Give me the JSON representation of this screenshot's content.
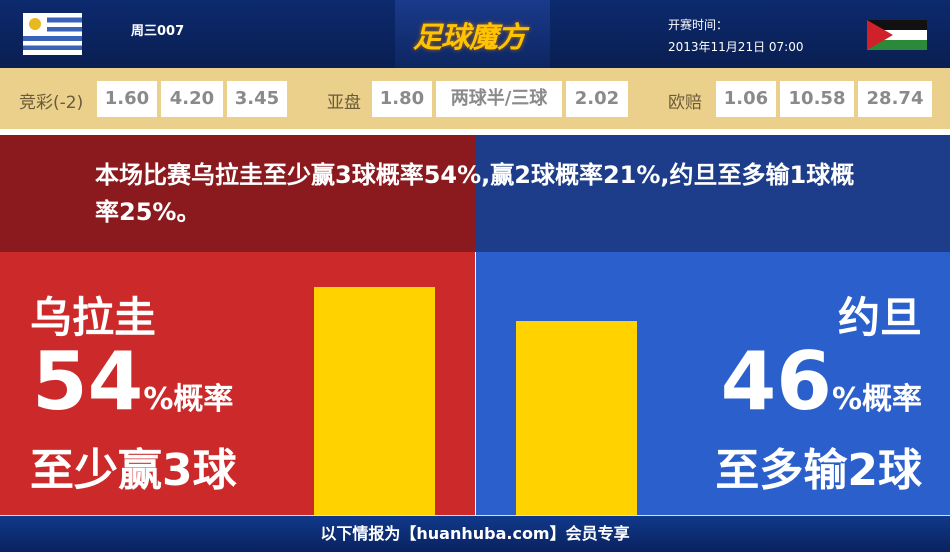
{
  "header": {
    "match_code": "周三007",
    "logo_text": "足球魔方",
    "time_label": "开赛时间：",
    "kickoff": "2013年11月21日 07:00",
    "home_flag": "uruguay-flag-icon",
    "away_flag": "jordan-flag-icon"
  },
  "odds": {
    "jingcai": {
      "label": "竞彩(-2)",
      "values": [
        "1.60",
        "4.20",
        "3.45"
      ]
    },
    "yapan": {
      "label": "亚盘",
      "values": [
        "1.80",
        "两球半/三球",
        "2.02"
      ]
    },
    "oupei": {
      "label": "欧赔",
      "values": [
        "1.06",
        "10.58",
        "28.74"
      ]
    }
  },
  "banner": {
    "text": "本场比赛乌拉圭至少赢3球概率54%,赢2球概率21%,约旦至多输1球概率25%。"
  },
  "home": {
    "team": "乌拉圭",
    "percent": "54",
    "suffix": "%概率",
    "desc": "至少赢3球",
    "value": 54
  },
  "away": {
    "team": "约旦",
    "percent": "46",
    "suffix": "%概率",
    "desc": "至多输2球",
    "value": 46
  },
  "colors": {
    "home": "#cc2a2a",
    "away": "#2a5fcc",
    "bar": "#ffd200"
  },
  "footer": {
    "text": "以下情报为【huanhuba.com】会员专享"
  }
}
